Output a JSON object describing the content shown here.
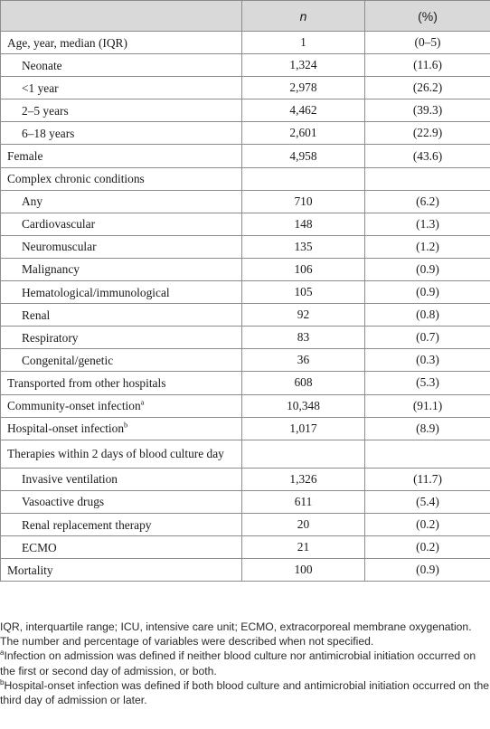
{
  "table": {
    "headers": {
      "label": "",
      "n": "n",
      "pct": "(%)"
    },
    "rows": [
      {
        "label": "Age, year, median (IQR)",
        "n": "1",
        "pct": "(0–5)",
        "indent": false
      },
      {
        "label": "Neonate",
        "n": "1,324",
        "pct": "(11.6)",
        "indent": true
      },
      {
        "label": "<1 year",
        "n": "2,978",
        "pct": "(26.2)",
        "indent": true
      },
      {
        "label": "2–5 years",
        "n": "4,462",
        "pct": "(39.3)",
        "indent": true
      },
      {
        "label": "6–18 years",
        "n": "2,601",
        "pct": "(22.9)",
        "indent": true
      },
      {
        "label": "Female",
        "n": "4,958",
        "pct": "(43.6)",
        "indent": false
      },
      {
        "label": "Complex chronic conditions",
        "n": "",
        "pct": "",
        "indent": false
      },
      {
        "label": "Any",
        "n": "710",
        "pct": "(6.2)",
        "indent": true
      },
      {
        "label": "Cardiovascular",
        "n": "148",
        "pct": "(1.3)",
        "indent": true
      },
      {
        "label": "Neuromuscular",
        "n": "135",
        "pct": "(1.2)",
        "indent": true
      },
      {
        "label": "Malignancy",
        "n": "106",
        "pct": "(0.9)",
        "indent": true
      },
      {
        "label": "Hematological/immunological",
        "n": "105",
        "pct": "(0.9)",
        "indent": true
      },
      {
        "label": "Renal",
        "n": "92",
        "pct": "(0.8)",
        "indent": true
      },
      {
        "label": "Respiratory",
        "n": "83",
        "pct": "(0.7)",
        "indent": true
      },
      {
        "label": "Congenital/genetic",
        "n": "36",
        "pct": "(0.3)",
        "indent": true
      },
      {
        "label": "Transported from other hospitals",
        "n": "608",
        "pct": "(5.3)",
        "indent": false
      },
      {
        "label": "Community-onset infection",
        "sup": "a",
        "n": "10,348",
        "pct": "(91.1)",
        "indent": false
      },
      {
        "label": "Hospital-onset infection",
        "sup": "b",
        "n": "1,017",
        "pct": "(8.9)",
        "indent": false
      },
      {
        "label": "Therapies within 2 days of blood culture day",
        "n": "",
        "pct": "",
        "indent": false,
        "wrap": true
      },
      {
        "label": "Invasive ventilation",
        "n": "1,326",
        "pct": "(11.7)",
        "indent": true
      },
      {
        "label": "Vasoactive drugs",
        "n": "611",
        "pct": "(5.4)",
        "indent": true
      },
      {
        "label": "Renal replacement therapy",
        "n": "20",
        "pct": "(0.2)",
        "indent": true
      },
      {
        "label": "ECMO",
        "n": "21",
        "pct": "(0.2)",
        "indent": true
      },
      {
        "label": "Mortality",
        "n": "100",
        "pct": "(0.9)",
        "indent": false
      }
    ]
  },
  "footnotes": {
    "abbrev": "IQR, interquartile range; ICU, intensive care unit; ECMO, extracorporeal membrane oxygenation.",
    "general": "The number and percentage of variables were described when not specified.",
    "a_mark": "a",
    "a_text": "Infection on admission was defined if neither blood culture nor antimicrobial initiation occurred on the first or second day of admission, or both.",
    "b_mark": "b",
    "b_text": "Hospital-onset infection was defined if both blood culture and antimicrobial initiation occurred on the third day of admission or later."
  }
}
